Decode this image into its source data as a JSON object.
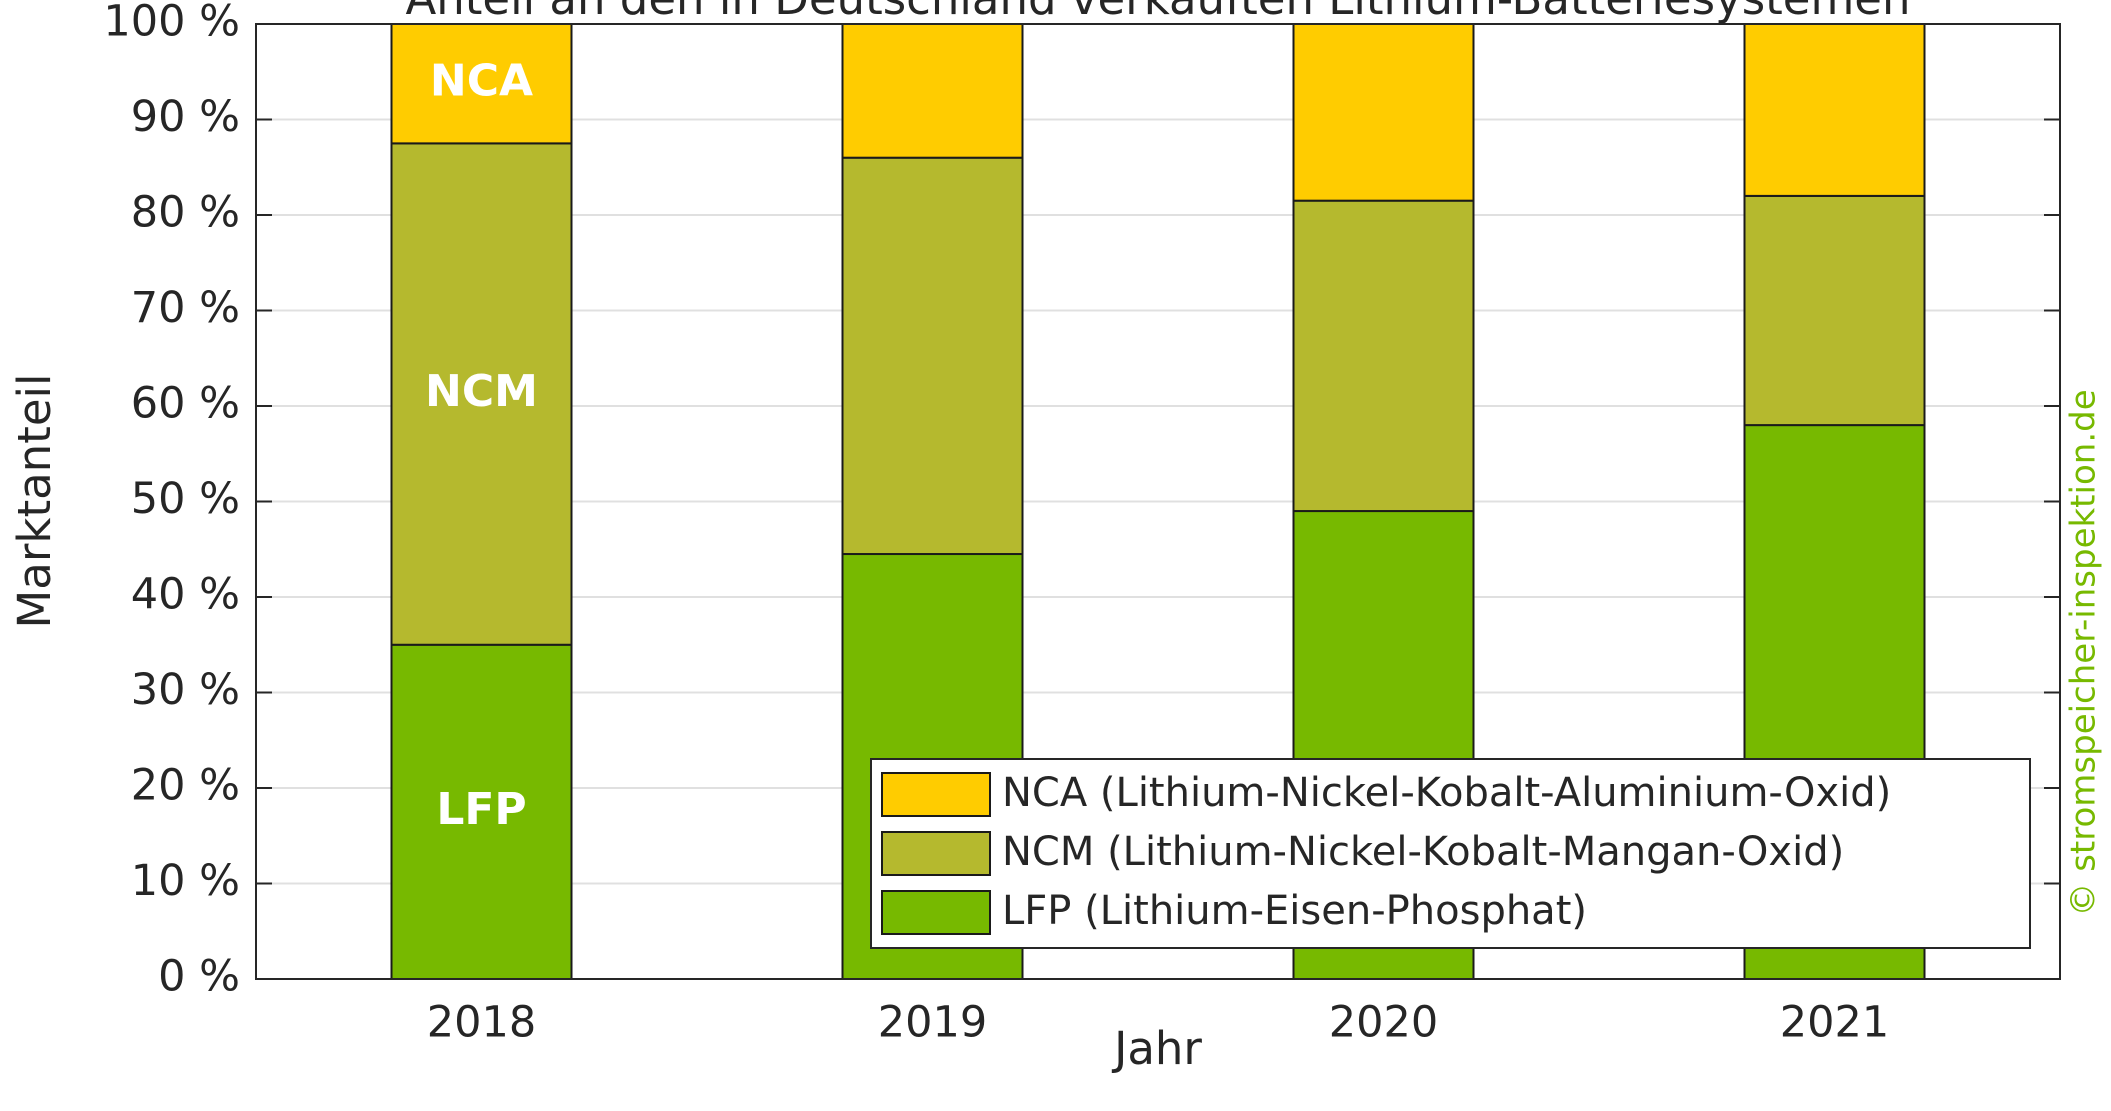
{
  "chart_data": {
    "type": "stacked_bar",
    "title": "Anteil an den in Deutschland verkauften Lithium-Batteriesystemen",
    "x_label": "Jahr",
    "y_label": "Marktanteil",
    "watermark": "© stromspeicher-inspektion.de",
    "categories": [
      "2018",
      "2019",
      "2020",
      "2021"
    ],
    "series": [
      {
        "name": "LFP (Lithium-Eisen-Phosphat)",
        "label": "LFP",
        "color": "#77b900",
        "values": [
          35,
          44.5,
          49,
          58
        ]
      },
      {
        "name": "NCM (Lithium-Nickel-Kobalt-Mangan-Oxid)",
        "label": "NCM",
        "color": "#b5b92e",
        "values": [
          52.5,
          41.5,
          32.5,
          24
        ]
      },
      {
        "name": "NCA (Lithium-Nickel-Kobalt-Aluminium-Oxid)",
        "label": "NCA",
        "color": "#ffcc00",
        "values": [
          12.5,
          14,
          18.5,
          18
        ]
      }
    ],
    "ylim": [
      0,
      100
    ],
    "yticks": [
      {
        "value": 0,
        "label": "0 %"
      },
      {
        "value": 10,
        "label": "10 %"
      },
      {
        "value": 20,
        "label": "20 %"
      },
      {
        "value": 30,
        "label": "30 %"
      },
      {
        "value": 40,
        "label": "40 %"
      },
      {
        "value": 50,
        "label": "50 %"
      },
      {
        "value": 60,
        "label": "60 %"
      },
      {
        "value": 70,
        "label": "70 %"
      },
      {
        "value": 80,
        "label": "80 %"
      },
      {
        "value": 90,
        "label": "90 %"
      },
      {
        "value": 100,
        "label": "100 %"
      }
    ],
    "grid": true,
    "legend": "lower right",
    "watermark_color": "#77b900"
  }
}
